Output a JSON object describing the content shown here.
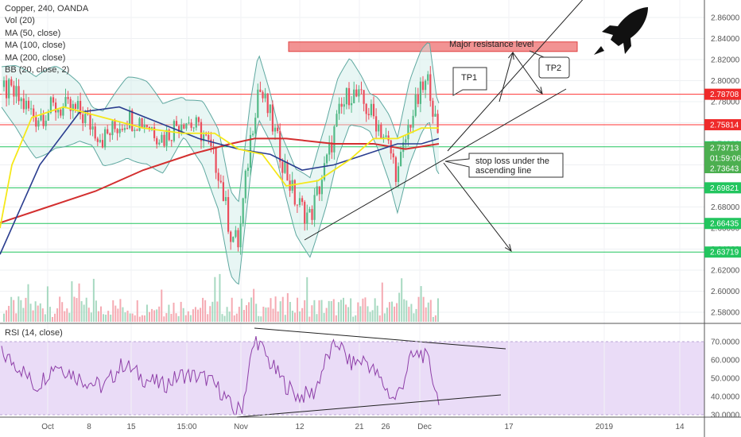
{
  "legend": {
    "symbol": "Copper, 240, OANDA",
    "vol": "Vol (20)",
    "ma50": "MA (50, close)",
    "ma100": "MA (100, close)",
    "ma200": "MA (200, close)",
    "bb": "BB (20, close, 2)"
  },
  "rsi_legend": "RSI (14, close)",
  "colors": {
    "up": "#53b987",
    "down": "#eb4d5c",
    "ma50": "#f5e81a",
    "ma100": "#2a3d8f",
    "ma200": "#d32f2f",
    "bb": "#5fa8a0",
    "rsi": "#8e3fa8",
    "rsi_band": "#eadcf7"
  },
  "icons": {
    "rocket": "rocket-icon"
  },
  "chart_data": [
    {
      "type": "candlestick",
      "title": "Copper, 240, OANDA",
      "ylim": [
        2.575,
        2.875
      ],
      "y_ticks": [
        "2.86000",
        "2.84000",
        "2.82000",
        "2.80000",
        "2.78000",
        "2.76000",
        "2.74000",
        "2.72000",
        "2.70000",
        "2.68000",
        "2.66000",
        "2.64000",
        "2.62000",
        "2.60000",
        "2.58000"
      ],
      "x_ticks": [
        "Oct",
        "8",
        "15",
        "15:00",
        "Nov",
        "12",
        "21",
        "26",
        "Dec",
        "17",
        "2019",
        "14"
      ],
      "price_path": [
        [
          0,
          2.795
        ],
        [
          20,
          2.785
        ],
        [
          45,
          2.765
        ],
        [
          70,
          2.775
        ],
        [
          100,
          2.77
        ],
        [
          130,
          2.745
        ],
        [
          160,
          2.765
        ],
        [
          185,
          2.76
        ],
        [
          205,
          2.745
        ],
        [
          230,
          2.765
        ],
        [
          255,
          2.75
        ],
        [
          275,
          2.715
        ],
        [
          290,
          2.655
        ],
        [
          300,
          2.645
        ],
        [
          315,
          2.745
        ],
        [
          325,
          2.795
        ],
        [
          340,
          2.765
        ],
        [
          355,
          2.725
        ],
        [
          372,
          2.685
        ],
        [
          390,
          2.67
        ],
        [
          410,
          2.72
        ],
        [
          425,
          2.765
        ],
        [
          440,
          2.79
        ],
        [
          455,
          2.78
        ],
        [
          475,
          2.76
        ],
        [
          490,
          2.735
        ],
        [
          500,
          2.71
        ],
        [
          515,
          2.76
        ],
        [
          530,
          2.79
        ],
        [
          540,
          2.8
        ],
        [
          550,
          2.745
        ]
      ],
      "ma50": [
        [
          0,
          2.66
        ],
        [
          15,
          2.72
        ],
        [
          40,
          2.765
        ],
        [
          80,
          2.775
        ],
        [
          130,
          2.765
        ],
        [
          180,
          2.755
        ],
        [
          230,
          2.75
        ],
        [
          270,
          2.75
        ],
        [
          300,
          2.735
        ],
        [
          330,
          2.73
        ],
        [
          360,
          2.7
        ],
        [
          400,
          2.705
        ],
        [
          440,
          2.725
        ],
        [
          470,
          2.745
        ],
        [
          500,
          2.745
        ],
        [
          530,
          2.755
        ],
        [
          552,
          2.755
        ]
      ],
      "ma100": [
        [
          0,
          2.635
        ],
        [
          50,
          2.72
        ],
        [
          100,
          2.77
        ],
        [
          150,
          2.775
        ],
        [
          200,
          2.76
        ],
        [
          250,
          2.745
        ],
        [
          300,
          2.735
        ],
        [
          340,
          2.73
        ],
        [
          380,
          2.715
        ],
        [
          420,
          2.72
        ],
        [
          460,
          2.73
        ],
        [
          500,
          2.74
        ],
        [
          530,
          2.74
        ],
        [
          552,
          2.745
        ]
      ],
      "ma200": [
        [
          0,
          2.665
        ],
        [
          60,
          2.68
        ],
        [
          120,
          2.695
        ],
        [
          180,
          2.715
        ],
        [
          240,
          2.73
        ],
        [
          290,
          2.74
        ],
        [
          320,
          2.745
        ],
        [
          360,
          2.745
        ],
        [
          420,
          2.74
        ],
        [
          470,
          2.74
        ],
        [
          510,
          2.735
        ],
        [
          552,
          2.74
        ]
      ],
      "resistance_zone": [
        2.827,
        2.833
      ],
      "levels": [
        {
          "value": 2.78708,
          "label": "2.78708",
          "color": "#ff3333"
        },
        {
          "value": 2.75814,
          "label": "2.75814",
          "color": "#ff3333"
        },
        {
          "value": 2.73713,
          "label": "2.73713",
          "color": "#22c55e"
        },
        {
          "value": 2.69821,
          "label": "2.69821",
          "color": "#22c55e"
        },
        {
          "value": 2.66435,
          "label": "2.66435",
          "color": "#22c55e"
        },
        {
          "value": 2.63719,
          "label": "2.63719",
          "color": "#22c55e"
        }
      ],
      "price_tags": [
        {
          "label": "2.73713",
          "color": "#4caf50"
        },
        {
          "label": "01:59:06",
          "color": "#4caf50"
        },
        {
          "label": "2.73643",
          "color": "#4caf50"
        }
      ],
      "annotations": {
        "resistance": "Major resistance level",
        "tp1": "TP1",
        "tp2": "TP2",
        "stop_line1": "stop loss under the",
        "stop_line2": "ascending line"
      }
    },
    {
      "type": "line",
      "title": "RSI (14, close)",
      "ylim": [
        27,
        75
      ],
      "y_ticks": [
        "70.0000",
        "60.0000",
        "50.0000",
        "40.0000",
        "30.0000"
      ],
      "band": [
        30,
        70
      ],
      "rsi_path": [
        [
          0,
          64
        ],
        [
          25,
          56
        ],
        [
          45,
          45
        ],
        [
          70,
          58
        ],
        [
          100,
          50
        ],
        [
          130,
          45
        ],
        [
          155,
          58
        ],
        [
          180,
          50
        ],
        [
          205,
          46
        ],
        [
          230,
          52
        ],
        [
          260,
          50
        ],
        [
          280,
          42
        ],
        [
          295,
          31
        ],
        [
          305,
          35
        ],
        [
          315,
          60
        ],
        [
          322,
          72
        ],
        [
          340,
          58
        ],
        [
          360,
          46
        ],
        [
          375,
          40
        ],
        [
          395,
          42
        ],
        [
          410,
          60
        ],
        [
          425,
          70
        ],
        [
          440,
          58
        ],
        [
          460,
          60
        ],
        [
          480,
          48
        ],
        [
          495,
          38
        ],
        [
          505,
          45
        ],
        [
          515,
          60
        ],
        [
          530,
          64
        ],
        [
          540,
          58
        ],
        [
          550,
          40
        ]
      ]
    }
  ]
}
